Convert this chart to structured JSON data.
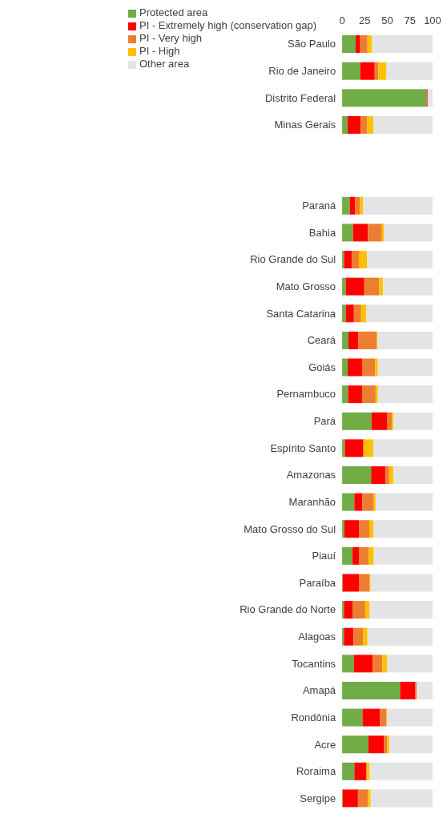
{
  "chart_data": {
    "type": "bar",
    "orientation": "horizontal",
    "stacked": true,
    "legend": "top",
    "grid": false,
    "categories": [
      "São Paulo",
      "Rio de Janeiro",
      "Distrito Federal",
      "Minas Gerais",
      null,
      null,
      "Paraná",
      "Bahia",
      "Rio Grande do Sul",
      "Mato Grosso",
      "Santa Catarina",
      "Ceará",
      "Goiás",
      "Pernambuco",
      "Pará",
      "Espírito Santo",
      "Amazonas",
      "Maranhão",
      "Mato Grosso do Sul",
      "Piauí",
      "Paraíba",
      "Rio Grande do Norte",
      "Alagoas",
      "Tocantins",
      "Amapá",
      "Rondônia",
      "Acre",
      "Roraima",
      "Sergipe"
    ],
    "xlim": [
      0,
      100
    ],
    "xticks": [
      0,
      25,
      50,
      75,
      100
    ],
    "series": [
      {
        "name": "Protected area",
        "color": "#70ad47",
        "values": [
          15,
          20,
          93.5,
          6,
          null,
          null,
          8.5,
          12,
          2,
          4,
          4,
          7,
          6,
          6.5,
          32.5,
          3,
          32,
          13.5,
          2.5,
          11.5,
          0.5,
          2,
          2,
          13,
          64,
          22.5,
          29,
          13.5,
          0.5
        ]
      },
      {
        "name": "PI - Extremely high (conservation gap)",
        "color": "#ff0000",
        "values": [
          5,
          16,
          1,
          14.5,
          null,
          null,
          6,
          16.5,
          8.5,
          20.5,
          9,
          11,
          16,
          15.5,
          17,
          20,
          16,
          9,
          16,
          7,
          18,
          9.5,
          10.5,
          21,
          17,
          19.5,
          17.5,
          13.5,
          17
        ]
      },
      {
        "name": "PI - Very high",
        "color": "#ed7d31",
        "values": [
          8,
          4,
          0,
          7,
          null,
          null,
          5,
          15.5,
          8,
          16.5,
          8,
          20,
          14.5,
          15,
          5.5,
          1.5,
          4,
          12.5,
          11.5,
          11,
          12,
          14,
          10.5,
          10.5,
          1.5,
          7,
          3,
          0,
          11
        ]
      },
      {
        "name": "PI - High",
        "color": "#ffc000",
        "values": [
          5,
          9,
          0,
          7,
          null,
          null,
          3.5,
          2.5,
          9,
          4,
          5.5,
          1,
          3,
          2.5,
          2,
          10,
          4.5,
          2,
          4.5,
          5.5,
          1,
          5,
          5,
          5,
          0,
          0.5,
          2.5,
          3.5,
          3
        ]
      },
      {
        "name": "Other area",
        "color": "#e4e4e4",
        "values": [
          67,
          51,
          5.5,
          65.5,
          null,
          null,
          77,
          53.5,
          72.5,
          55,
          73.5,
          61,
          60.5,
          60.5,
          43,
          65.5,
          43.5,
          63,
          65.5,
          65,
          68.5,
          69.5,
          72,
          50.5,
          17.5,
          50.5,
          48,
          69.5,
          68.5
        ]
      }
    ]
  }
}
